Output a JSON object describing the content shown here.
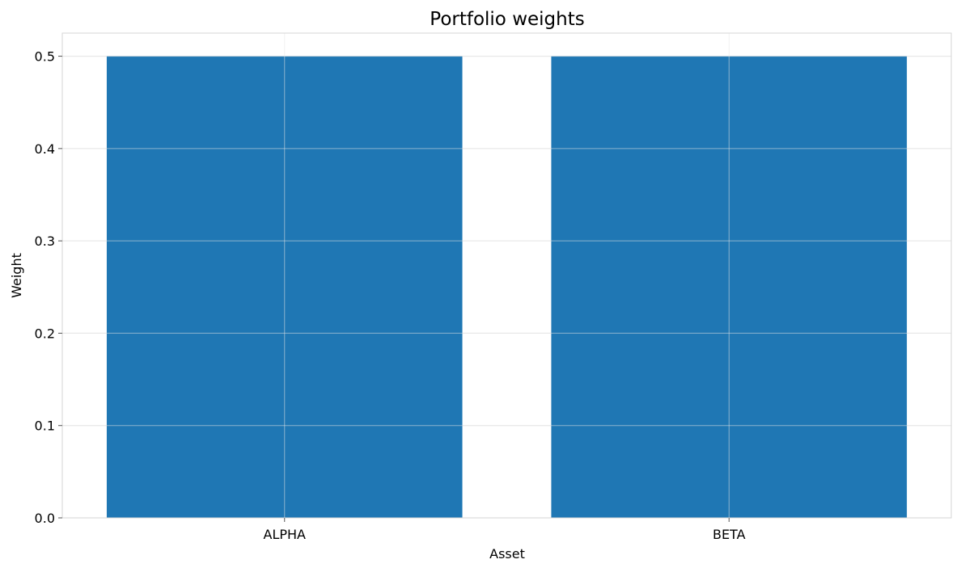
{
  "chart_data": {
    "type": "bar",
    "title": "Portfolio weights",
    "xlabel": "Asset",
    "ylabel": "Weight",
    "categories": [
      "ALPHA",
      "BETA"
    ],
    "values": [
      0.5,
      0.5
    ],
    "ylim": [
      0,
      0.525
    ],
    "yticks": [
      0.0,
      0.1,
      0.2,
      0.3,
      0.4,
      0.5
    ],
    "ytick_labels": [
      "0.0",
      "0.1",
      "0.2",
      "0.3",
      "0.4",
      "0.5"
    ],
    "grid": true,
    "legend": "none",
    "colors": {
      "bar": "#1f77b4",
      "grid": "#e6e6e6",
      "spine": "#d6d6d6"
    }
  }
}
